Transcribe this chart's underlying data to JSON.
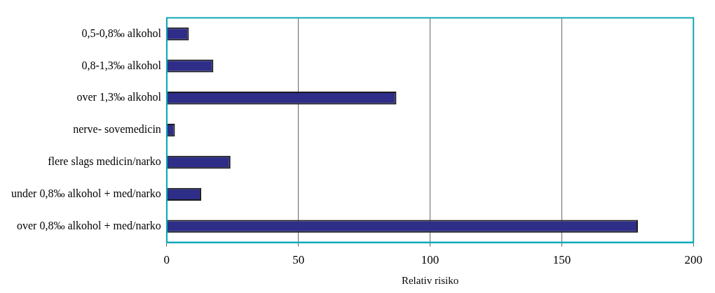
{
  "chart_data": {
    "type": "bar",
    "orientation": "horizontal",
    "xlabel": "Relativ risiko",
    "categories": [
      "0,5-0,8‰ alkohol",
      "0,8-1,3‰ alkohol",
      "over 1,3‰ alkohol",
      "nerve- sovemedicin",
      "flere slags medicin/narko",
      "under 0,8‰ alkohol + med/narko",
      "over 0,8‰ alkohol + med/narko"
    ],
    "values": [
      8.4,
      17.7,
      87.2,
      3.1,
      24.2,
      13.1,
      178.9
    ],
    "color": "#2e2e88",
    "xlim": [
      0,
      200
    ],
    "xticks": [
      0,
      50,
      100,
      150,
      200
    ],
    "grid": "x",
    "legend": false
  }
}
